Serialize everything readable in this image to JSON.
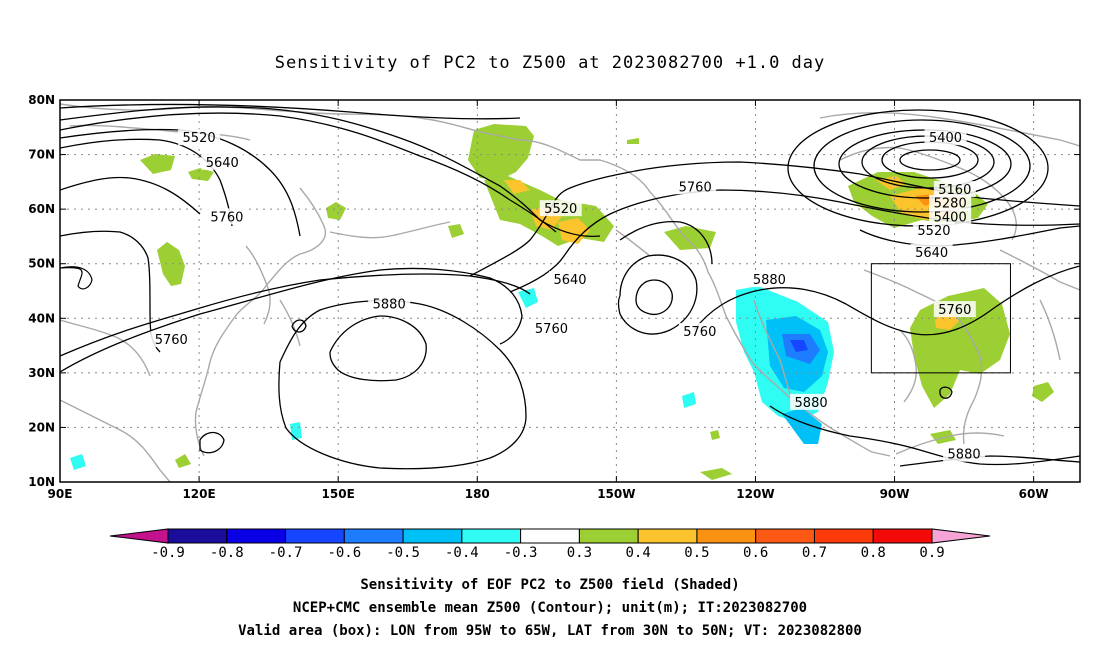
{
  "title": "Sensitivity of PC2 to Z500 at 2023082700 +1.0 day",
  "map": {
    "lon_min": 90,
    "lon_max": 310,
    "lat_min": 10,
    "lat_max": 80,
    "lon_ticks": [
      {
        "lon": 90,
        "label": "90E"
      },
      {
        "lon": 120,
        "label": "120E"
      },
      {
        "lon": 150,
        "label": "150E"
      },
      {
        "lon": 180,
        "label": "180"
      },
      {
        "lon": 210,
        "label": "150W"
      },
      {
        "lon": 240,
        "label": "120W"
      },
      {
        "lon": 270,
        "label": "90W"
      },
      {
        "lon": 300,
        "label": "60W"
      }
    ],
    "lat_ticks": [
      {
        "lat": 80,
        "label": "80N"
      },
      {
        "lat": 70,
        "label": "70N"
      },
      {
        "lat": 60,
        "label": "60N"
      },
      {
        "lat": 50,
        "label": "50N"
      },
      {
        "lat": 40,
        "label": "40N"
      },
      {
        "lat": 30,
        "label": "30N"
      },
      {
        "lat": 20,
        "label": "20N"
      },
      {
        "lat": 10,
        "label": "10N"
      }
    ],
    "valid_box": {
      "lon_west": 265,
      "lon_east": 295,
      "lat_south": 30,
      "lat_north": 50
    },
    "contour_labels": [
      {
        "text": "5520",
        "lon": 120,
        "lat": 73
      },
      {
        "text": "5640",
        "lon": 125,
        "lat": 68.5
      },
      {
        "text": "5760",
        "lon": 126,
        "lat": 58.5
      },
      {
        "text": "5760",
        "lon": 114,
        "lat": 36
      },
      {
        "text": "5880",
        "lon": 161,
        "lat": 42.5
      },
      {
        "text": "5520",
        "lon": 198,
        "lat": 60
      },
      {
        "text": "5640",
        "lon": 200,
        "lat": 47
      },
      {
        "text": "5760",
        "lon": 196,
        "lat": 38
      },
      {
        "text": "5760",
        "lon": 227,
        "lat": 64
      },
      {
        "text": "5760",
        "lon": 228,
        "lat": 37.5
      },
      {
        "text": "5880",
        "lon": 243,
        "lat": 47
      },
      {
        "text": "5880",
        "lon": 252,
        "lat": 24.5
      },
      {
        "text": "5880",
        "lon": 285,
        "lat": 15
      },
      {
        "text": "5400",
        "lon": 281,
        "lat": 73
      },
      {
        "text": "5160",
        "lon": 283,
        "lat": 63.5
      },
      {
        "text": "5280",
        "lon": 282,
        "lat": 61
      },
      {
        "text": "5400",
        "lon": 282,
        "lat": 58.5
      },
      {
        "text": "5520",
        "lon": 278.5,
        "lat": 56
      },
      {
        "text": "5640",
        "lon": 278,
        "lat": 52
      },
      {
        "text": "5760",
        "lon": 283,
        "lat": 41.5
      }
    ]
  },
  "colorbar": {
    "levels": [
      "-0.9",
      "-0.8",
      "-0.7",
      "-0.6",
      "-0.5",
      "-0.4",
      "-0.3",
      "0.3",
      "0.4",
      "0.5",
      "0.6",
      "0.7",
      "0.8",
      "0.9"
    ],
    "low_end_color": "#c4118c",
    "high_end_color": "#f6a3d6",
    "colors": [
      "#1b0d9c",
      "#0a00e6",
      "#1646ff",
      "#1e7dff",
      "#00c0f8",
      "#2ffcf2",
      "#ffffff",
      "#9ccf33",
      "#fcc42c",
      "#fc9212",
      "#fc5a14",
      "#fc3a0a",
      "#f50a0a"
    ]
  },
  "footer": {
    "line1": "Sensitivity of EOF PC2 to Z500 field (Shaded)",
    "line2": "NCEP+CMC ensemble mean Z500 (Contour); unit(m); IT:2023082700",
    "line3": "Valid area (box): LON from 95W to 65W, LAT from 30N to 50N; VT: 2023082800"
  }
}
